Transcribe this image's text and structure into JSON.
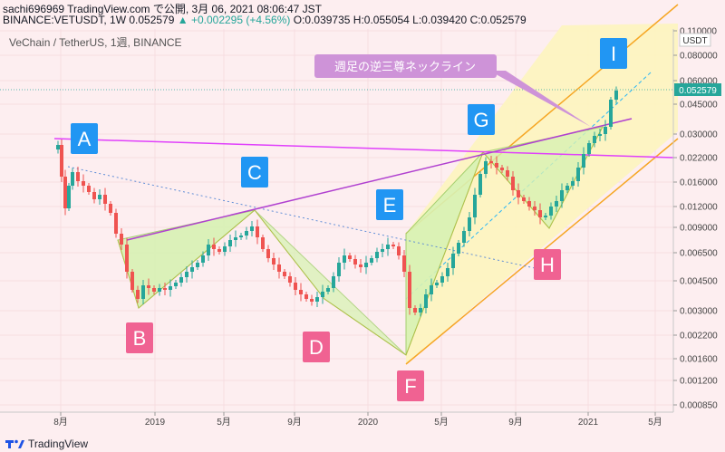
{
  "header": {
    "line1_prefix": "sachi696969 TradingView.com で公開, 3月 06, 2021 08:06:47 JST",
    "line2_prefix": "BINANCE:VETUSDT, 1W 0.052579",
    "line2_change": "▲ +0.002295 (+4.56%)",
    "line2_ohlc": "O:0.039735 H:0.055054 L:0.039420 C:0.052579"
  },
  "chart_title": "VeChain / TetherUS, 1週, BINANCE",
  "currency": "USDT",
  "branding": "TradingView",
  "colors": {
    "up": "#26a69a",
    "down": "#ef5350",
    "magenta_line": "#e040fb",
    "blue_marker": "#2196f3",
    "pink_marker": "#f06292",
    "channel_orange": "#f6a623",
    "channel_fill": "#fdf3c0",
    "triangle_fill": "#d8f2b4",
    "callout_bg": "#ce93d8"
  },
  "chart_data": {
    "type": "candlestick",
    "symbol": "BINANCE:VETUSDT",
    "interval": "1W",
    "y_scale": "log",
    "y_ticks": [
      "0.110000",
      "0.080000",
      "0.060000",
      "0.045000",
      "0.030000",
      "0.022000",
      "0.016000",
      "0.012000",
      "0.009000",
      "0.006500",
      "0.004500",
      "0.003000",
      "0.002200",
      "0.001600",
      "0.001200",
      "0.000850"
    ],
    "last_price": "0.052579",
    "x_ticks": [
      "8月",
      "2019",
      "5月",
      "9月",
      "2020",
      "5月",
      "9月",
      "2021",
      "5月"
    ],
    "annotation_callout": "週足の逆三尊ネックライン",
    "wave_labels": [
      {
        "label": "A",
        "color": "blue"
      },
      {
        "label": "B",
        "color": "pink"
      },
      {
        "label": "C",
        "color": "blue"
      },
      {
        "label": "D",
        "color": "pink"
      },
      {
        "label": "E",
        "color": "blue"
      },
      {
        "label": "F",
        "color": "pink"
      },
      {
        "label": "G",
        "color": "blue"
      },
      {
        "label": "H",
        "color": "pink"
      },
      {
        "label": "I",
        "color": "blue"
      }
    ]
  }
}
